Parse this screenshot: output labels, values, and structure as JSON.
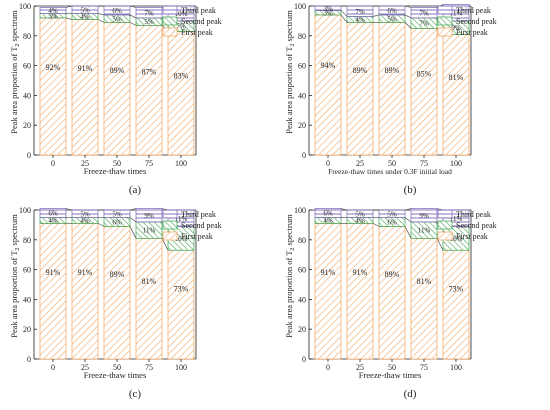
{
  "legend": {
    "third_peak": "Third peak",
    "second_peak": "Second peak",
    "first_peak": "First peak"
  },
  "colors": {
    "first": "#f3a25a",
    "second": "#3aa24a",
    "third": "#7a63b8",
    "connector": "#444444"
  },
  "chart_data": [
    {
      "type": "bar",
      "stacked": true,
      "panel_label": "(a)",
      "xlabel": "Freeze-thaw times",
      "ylabel": "Peak area proportion of T2 spectrum",
      "categories": [
        "0",
        "25",
        "50",
        "75",
        "100"
      ],
      "ylim": [
        0,
        100
      ],
      "yticks": [
        "0",
        "20",
        "40",
        "60",
        "80",
        "100"
      ],
      "series": [
        {
          "name": "First peak",
          "values": [
            92,
            91,
            89,
            87,
            83
          ],
          "labels": [
            "92%",
            "91%",
            "89%",
            "87%",
            "83%"
          ]
        },
        {
          "name": "Second peak",
          "values": [
            3,
            4,
            5,
            5,
            7
          ],
          "labels": [
            "3%",
            "4%",
            "5%",
            "5%",
            "7%"
          ]
        },
        {
          "name": "Third peak",
          "values": [
            4,
            5,
            6,
            7,
            10
          ],
          "labels": [
            "4%",
            "5%",
            "6%",
            "7%",
            "10%"
          ]
        }
      ],
      "legend_position": "top-right"
    },
    {
      "type": "bar",
      "stacked": true,
      "panel_label": "(b)",
      "xlabel": "Freeze-thaw times under 0.3F initial load",
      "ylabel": "Peak area proportion of T2 spectrum",
      "categories": [
        "0",
        "25",
        "50",
        "75",
        "100"
      ],
      "ylim": [
        0,
        100
      ],
      "yticks": [
        "0",
        "20",
        "40",
        "60",
        "80",
        "100"
      ],
      "series": [
        {
          "name": "First peak",
          "values": [
            94,
            89,
            89,
            85,
            81
          ],
          "labels": [
            "94%",
            "89%",
            "89%",
            "85%",
            "81%"
          ]
        },
        {
          "name": "Second peak",
          "values": [
            3,
            4,
            5,
            7,
            9
          ],
          "labels": [
            "3%",
            "4%",
            "5%",
            "7%",
            "9%"
          ]
        },
        {
          "name": "Third peak",
          "values": [
            3,
            7,
            6,
            7,
            11
          ],
          "labels": [
            "3%",
            "7%",
            "6%",
            "7%",
            "11%"
          ]
        }
      ],
      "legend_position": "top-right"
    },
    {
      "type": "bar",
      "stacked": true,
      "panel_label": "(c)",
      "xlabel": "Freeze-thaw times",
      "ylabel": "Peak area proportion of T2 spectrum",
      "categories": [
        "0",
        "25",
        "50",
        "75",
        "100"
      ],
      "ylim": [
        0,
        100
      ],
      "yticks": [
        "0",
        "20",
        "40",
        "60",
        "80",
        "100"
      ],
      "series": [
        {
          "name": "First peak",
          "values": [
            91,
            91,
            89,
            81,
            73
          ],
          "labels": [
            "91%",
            "91%",
            "89%",
            "81%",
            "73%"
          ]
        },
        {
          "name": "Second peak",
          "values": [
            4,
            4,
            6,
            11,
            16
          ],
          "labels": [
            "4%",
            "4%",
            "6%",
            "11%",
            "16%"
          ]
        },
        {
          "name": "Third peak",
          "values": [
            6,
            5,
            5,
            9,
            11
          ],
          "labels": [
            "6%",
            "5%",
            "5%",
            "9%",
            "11%"
          ]
        }
      ],
      "legend_position": "top-right"
    },
    {
      "type": "bar",
      "stacked": true,
      "panel_label": "(d)",
      "xlabel": "Freeze-thaw times",
      "ylabel": "Peak area proportion of T2 spectrum",
      "categories": [
        "0",
        "25",
        "50",
        "75",
        "100"
      ],
      "ylim": [
        0,
        100
      ],
      "yticks": [
        "0",
        "20",
        "40",
        "60",
        "80",
        "100"
      ],
      "series": [
        {
          "name": "First peak",
          "values": [
            91,
            91,
            89,
            81,
            73
          ],
          "labels": [
            "91%",
            "91%",
            "89%",
            "81%",
            "73%"
          ]
        },
        {
          "name": "Second peak",
          "values": [
            4,
            4,
            6,
            11,
            16
          ],
          "labels": [
            "4%",
            "4%",
            "6%",
            "11%",
            "16%"
          ]
        },
        {
          "name": "Third peak",
          "values": [
            6,
            5,
            5,
            9,
            11
          ],
          "labels": [
            "6%",
            "5%",
            "5%",
            "9%",
            "11%"
          ]
        }
      ],
      "legend_position": "top-right"
    }
  ]
}
